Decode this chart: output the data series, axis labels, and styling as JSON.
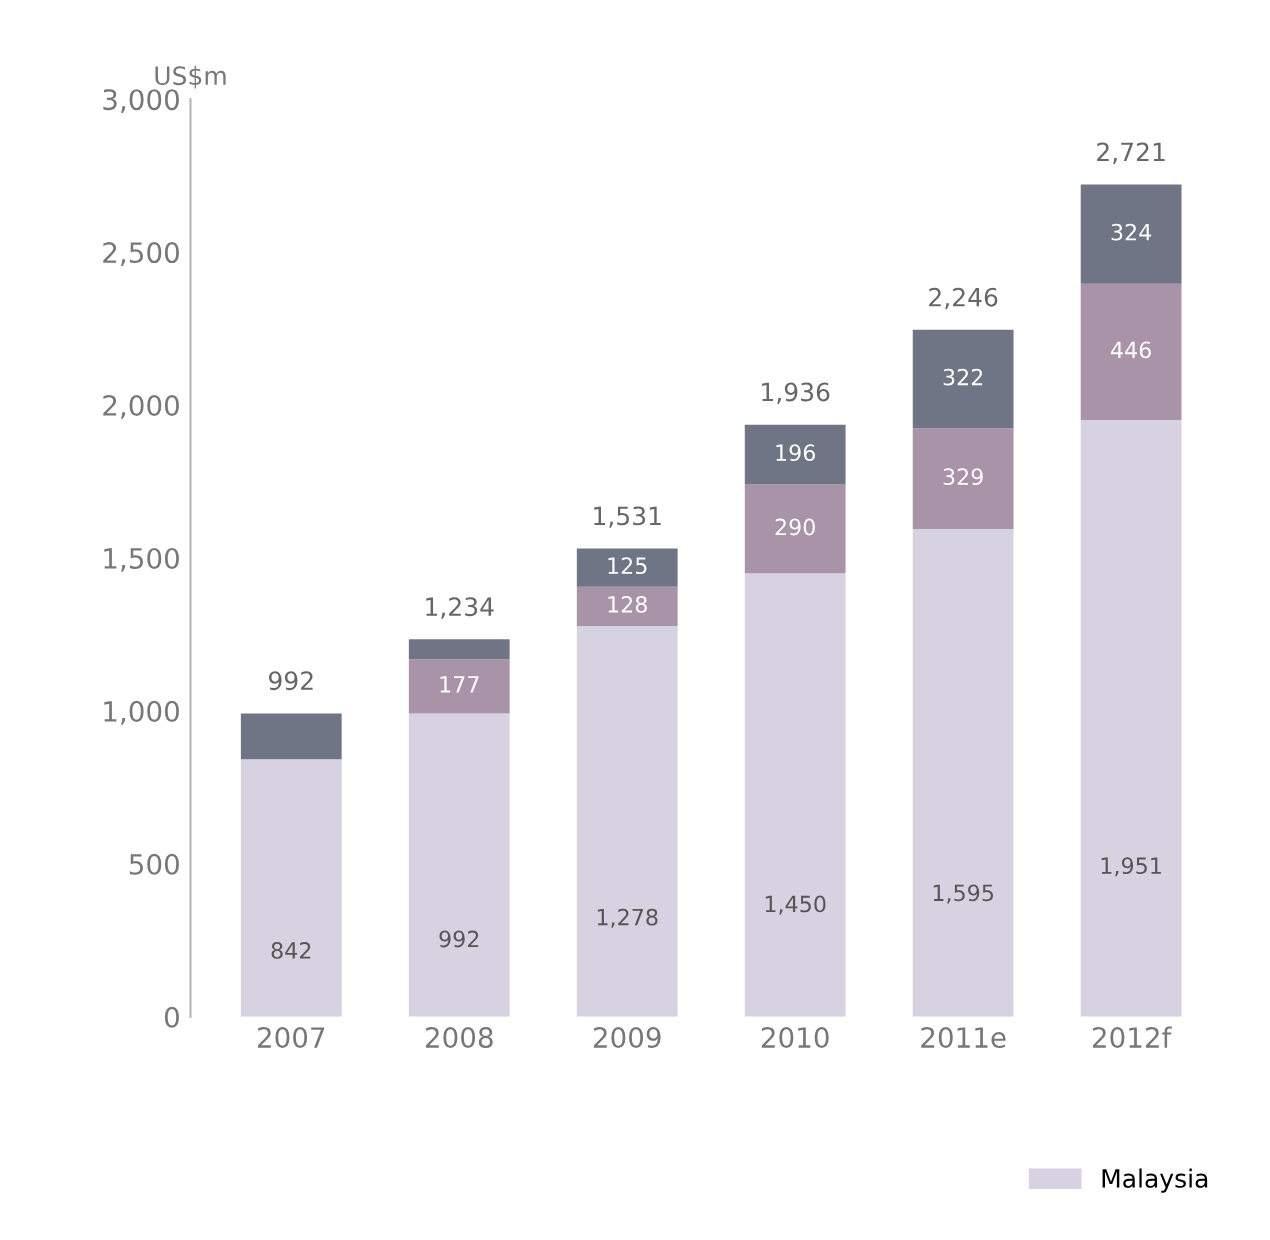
{
  "chart_data": {
    "type": "bar",
    "stacked": true,
    "ylabel": "US$m",
    "categories": [
      "2007",
      "2008",
      "2009",
      "2010",
      "2011e",
      "2012f"
    ],
    "series": [
      {
        "name": "Malaysia",
        "color": "#d6d2e2",
        "values": [
          842,
          992,
          1278,
          1450,
          1595,
          1951
        ],
        "value_labels": [
          "842",
          "992",
          "1,278",
          "1,450",
          "1,595",
          "1,951"
        ]
      },
      {
        "color": "#a893a8",
        "values": [
          null,
          177,
          128,
          290,
          329,
          446
        ],
        "value_labels": [
          null,
          "177",
          "128",
          "290",
          "329",
          "446"
        ]
      },
      {
        "color": "#6f7585",
        "values": [
          150,
          65,
          125,
          196,
          322,
          324
        ],
        "value_labels": [
          null,
          null,
          "125",
          "196",
          "322",
          "324"
        ]
      }
    ],
    "totals": [
      "992",
      "1,234",
      "1,531",
      "1,936",
      "2,246",
      "2,721"
    ],
    "ylim": [
      0,
      3000
    ],
    "yticks": [
      {
        "value": 0,
        "label": "0"
      },
      {
        "value": 500,
        "label": "500"
      },
      {
        "value": 1000,
        "label": "1,000"
      },
      {
        "value": 1500,
        "label": "1,500"
      },
      {
        "value": 2000,
        "label": "2,000"
      },
      {
        "value": 2500,
        "label": "2,500"
      },
      {
        "value": 3000,
        "label": "3,000"
      }
    ],
    "grid": false,
    "legend": "bottom right"
  }
}
